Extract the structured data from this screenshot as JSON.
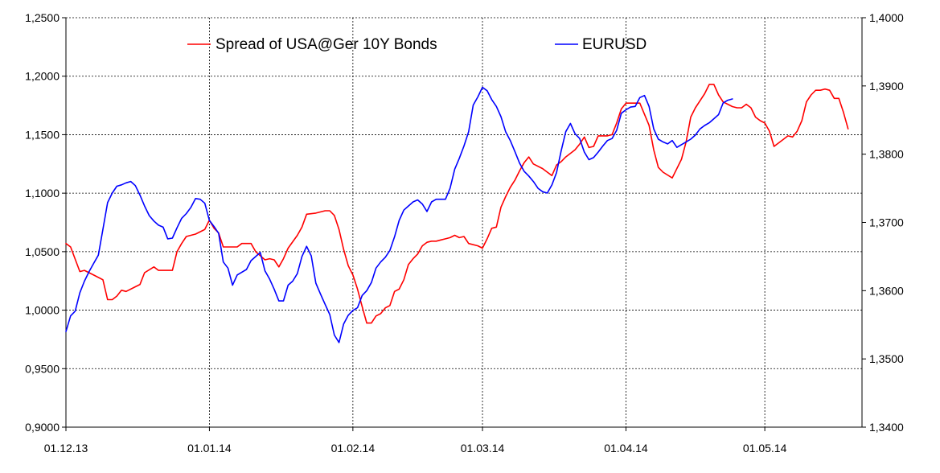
{
  "chart_data": {
    "type": "line",
    "title": "",
    "xlabel": "",
    "ylabel": "",
    "x_tick_labels": [
      "01.12.13",
      "01.01.14",
      "01.02.14",
      "01.03.14",
      "01.04.14",
      "01.05.14"
    ],
    "x_tick_days": [
      0,
      31,
      62,
      90,
      121,
      151
    ],
    "x_range_days": [
      0,
      172
    ],
    "y_left": {
      "ylim": [
        0.9,
        1.25
      ],
      "ticks": [
        0.9,
        0.95,
        1.0,
        1.05,
        1.1,
        1.15,
        1.2,
        1.25
      ],
      "tick_labels": [
        "0,9000",
        "0,9500",
        "1,0000",
        "1,0500",
        "1,1000",
        "1,1500",
        "1,2000",
        "1,2500"
      ]
    },
    "y_right": {
      "ylim": [
        1.34,
        1.4
      ],
      "ticks": [
        1.34,
        1.35,
        1.36,
        1.37,
        1.38,
        1.39,
        1.4
      ],
      "tick_labels": [
        "1,3400",
        "1,3500",
        "1,3600",
        "1,3700",
        "1,3800",
        "1,3900",
        "1,4000"
      ]
    },
    "grid": true,
    "legend_position": "top-center",
    "series": [
      {
        "name": "Spread of USA@Ger 10Y Bonds",
        "color": "#ff0000",
        "axis": "left",
        "points": [
          [
            0,
            1.057
          ],
          [
            1,
            1.054
          ],
          [
            3,
            1.033
          ],
          [
            4,
            1.034
          ],
          [
            6,
            1.03
          ],
          [
            8,
            1.026
          ],
          [
            9,
            1.009
          ],
          [
            10,
            1.009
          ],
          [
            11,
            1.012
          ],
          [
            12,
            1.017
          ],
          [
            13,
            1.016
          ],
          [
            15,
            1.02
          ],
          [
            16,
            1.022
          ],
          [
            17,
            1.032
          ],
          [
            19,
            1.037
          ],
          [
            20,
            1.034
          ],
          [
            21,
            1.034
          ],
          [
            22,
            1.034
          ],
          [
            23,
            1.034
          ],
          [
            24,
            1.05
          ],
          [
            25,
            1.057
          ],
          [
            26,
            1.063
          ],
          [
            27,
            1.064
          ],
          [
            28,
            1.065
          ],
          [
            30,
            1.069
          ],
          [
            31,
            1.077
          ],
          [
            32,
            1.07
          ],
          [
            33,
            1.066
          ],
          [
            34,
            1.054
          ],
          [
            35,
            1.054
          ],
          [
            37,
            1.054
          ],
          [
            38,
            1.057
          ],
          [
            40,
            1.057
          ],
          [
            41,
            1.05
          ],
          [
            43,
            1.043
          ],
          [
            44,
            1.044
          ],
          [
            45,
            1.043
          ],
          [
            46,
            1.037
          ],
          [
            47,
            1.044
          ],
          [
            48,
            1.053
          ],
          [
            50,
            1.064
          ],
          [
            51,
            1.071
          ],
          [
            52,
            1.082
          ],
          [
            54,
            1.083
          ],
          [
            56,
            1.085
          ],
          [
            57,
            1.085
          ],
          [
            58,
            1.081
          ],
          [
            59,
            1.069
          ],
          [
            60,
            1.052
          ],
          [
            61,
            1.038
          ],
          [
            62,
            1.03
          ],
          [
            63,
            1.018
          ],
          [
            64,
            1.003
          ],
          [
            65,
            0.989
          ],
          [
            66,
            0.989
          ],
          [
            67,
            0.995
          ],
          [
            68,
            0.997
          ],
          [
            69,
            1.002
          ],
          [
            70,
            1.004
          ],
          [
            71,
            1.016
          ],
          [
            72,
            1.018
          ],
          [
            73,
            1.026
          ],
          [
            74,
            1.039
          ],
          [
            75,
            1.044
          ],
          [
            76,
            1.048
          ],
          [
            77,
            1.055
          ],
          [
            78,
            1.058
          ],
          [
            79,
            1.059
          ],
          [
            80,
            1.059
          ],
          [
            81,
            1.06
          ],
          [
            82,
            1.061
          ],
          [
            83,
            1.062
          ],
          [
            84,
            1.064
          ],
          [
            85,
            1.062
          ],
          [
            86,
            1.063
          ],
          [
            87,
            1.057
          ],
          [
            89,
            1.055
          ],
          [
            90,
            1.053
          ],
          [
            91,
            1.061
          ],
          [
            92,
            1.07
          ],
          [
            93,
            1.071
          ],
          [
            94,
            1.088
          ],
          [
            95,
            1.097
          ],
          [
            96,
            1.105
          ],
          [
            97,
            1.111
          ],
          [
            98,
            1.119
          ],
          [
            99,
            1.126
          ],
          [
            100,
            1.131
          ],
          [
            101,
            1.125
          ],
          [
            103,
            1.121
          ],
          [
            104,
            1.118
          ],
          [
            105,
            1.115
          ],
          [
            106,
            1.124
          ],
          [
            107,
            1.127
          ],
          [
            108,
            1.131
          ],
          [
            110,
            1.137
          ],
          [
            111,
            1.142
          ],
          [
            112,
            1.148
          ],
          [
            113,
            1.139
          ],
          [
            114,
            1.14
          ],
          [
            115,
            1.149
          ],
          [
            117,
            1.149
          ],
          [
            118,
            1.15
          ],
          [
            119,
            1.16
          ],
          [
            120,
            1.172
          ],
          [
            121,
            1.177
          ],
          [
            123,
            1.177
          ],
          [
            124,
            1.177
          ],
          [
            126,
            1.158
          ],
          [
            127,
            1.137
          ],
          [
            128,
            1.122
          ],
          [
            129,
            1.118
          ],
          [
            131,
            1.113
          ],
          [
            133,
            1.129
          ],
          [
            134,
            1.144
          ],
          [
            135,
            1.165
          ],
          [
            136,
            1.173
          ],
          [
            138,
            1.185
          ],
          [
            139,
            1.193
          ],
          [
            140,
            1.193
          ],
          [
            141,
            1.184
          ],
          [
            142,
            1.178
          ],
          [
            143,
            1.176
          ],
          [
            144,
            1.174
          ],
          [
            145,
            1.173
          ],
          [
            146,
            1.173
          ],
          [
            147,
            1.176
          ],
          [
            148,
            1.173
          ],
          [
            149,
            1.165
          ],
          [
            150,
            1.162
          ],
          [
            151,
            1.16
          ],
          [
            152,
            1.153
          ],
          [
            153,
            1.14
          ],
          [
            154,
            1.143
          ],
          [
            155,
            1.146
          ],
          [
            156,
            1.149
          ],
          [
            157,
            1.148
          ],
          [
            158,
            1.153
          ],
          [
            159,
            1.162
          ],
          [
            160,
            1.178
          ],
          [
            161,
            1.184
          ],
          [
            162,
            1.188
          ],
          [
            163,
            1.188
          ],
          [
            164,
            1.189
          ],
          [
            165,
            1.188
          ],
          [
            166,
            1.181
          ],
          [
            167,
            1.181
          ],
          [
            168,
            1.169
          ],
          [
            169,
            1.155
          ]
        ]
      },
      {
        "name": "EURUSD",
        "color": "#0000ff",
        "axis": "right",
        "points": [
          [
            0,
            1.354
          ],
          [
            1,
            1.3563
          ],
          [
            2,
            1.357
          ],
          [
            3,
            1.3597
          ],
          [
            4,
            1.3614
          ],
          [
            5,
            1.3628
          ],
          [
            6,
            1.364
          ],
          [
            7,
            1.3652
          ],
          [
            8,
            1.369
          ],
          [
            9,
            1.3729
          ],
          [
            10,
            1.3743
          ],
          [
            11,
            1.3753
          ],
          [
            12,
            1.3755
          ],
          [
            13,
            1.3758
          ],
          [
            14,
            1.376
          ],
          [
            15,
            1.3754
          ],
          [
            16,
            1.374
          ],
          [
            17,
            1.3724
          ],
          [
            18,
            1.371
          ],
          [
            19,
            1.3702
          ],
          [
            20,
            1.3696
          ],
          [
            21,
            1.3693
          ],
          [
            22,
            1.3676
          ],
          [
            23,
            1.3677
          ],
          [
            24,
            1.3692
          ],
          [
            25,
            1.3706
          ],
          [
            26,
            1.3713
          ],
          [
            27,
            1.3722
          ],
          [
            28,
            1.3735
          ],
          [
            29,
            1.3734
          ],
          [
            30,
            1.3728
          ],
          [
            31,
            1.3703
          ],
          [
            32,
            1.3694
          ],
          [
            33,
            1.3684
          ],
          [
            34,
            1.3642
          ],
          [
            35,
            1.3633
          ],
          [
            36,
            1.3608
          ],
          [
            37,
            1.3623
          ],
          [
            38,
            1.3627
          ],
          [
            39,
            1.3631
          ],
          [
            40,
            1.3644
          ],
          [
            41,
            1.365
          ],
          [
            42,
            1.3656
          ],
          [
            43,
            1.3629
          ],
          [
            44,
            1.3617
          ],
          [
            45,
            1.3602
          ],
          [
            46,
            1.3585
          ],
          [
            47,
            1.3585
          ],
          [
            48,
            1.3608
          ],
          [
            49,
            1.3614
          ],
          [
            50,
            1.3625
          ],
          [
            51,
            1.365
          ],
          [
            52,
            1.3665
          ],
          [
            53,
            1.3651
          ],
          [
            54,
            1.3611
          ],
          [
            55,
            1.3595
          ],
          [
            56,
            1.358
          ],
          [
            57,
            1.3565
          ],
          [
            58,
            1.3535
          ],
          [
            59,
            1.3524
          ],
          [
            60,
            1.3551
          ],
          [
            61,
            1.3564
          ],
          [
            62,
            1.3571
          ],
          [
            63,
            1.3575
          ],
          [
            64,
            1.3593
          ],
          [
            65,
            1.36
          ],
          [
            66,
            1.3612
          ],
          [
            67,
            1.3633
          ],
          [
            68,
            1.3642
          ],
          [
            69,
            1.3649
          ],
          [
            70,
            1.3659
          ],
          [
            71,
            1.3679
          ],
          [
            72,
            1.3703
          ],
          [
            73,
            1.3718
          ],
          [
            74,
            1.3724
          ],
          [
            75,
            1.373
          ],
          [
            76,
            1.3733
          ],
          [
            77,
            1.3727
          ],
          [
            78,
            1.3716
          ],
          [
            79,
            1.373
          ],
          [
            80,
            1.3734
          ],
          [
            81,
            1.3734
          ],
          [
            82,
            1.3734
          ],
          [
            83,
            1.375
          ],
          [
            84,
            1.3778
          ],
          [
            85,
            1.3794
          ],
          [
            86,
            1.3812
          ],
          [
            87,
            1.3833
          ],
          [
            88,
            1.3872
          ],
          [
            89,
            1.3884
          ],
          [
            90,
            1.3898
          ],
          [
            91,
            1.3893
          ],
          [
            92,
            1.388
          ],
          [
            93,
            1.387
          ],
          [
            94,
            1.3855
          ],
          [
            95,
            1.3833
          ],
          [
            96,
            1.382
          ],
          [
            97,
            1.3804
          ],
          [
            98,
            1.3787
          ],
          [
            99,
            1.3775
          ],
          [
            100,
            1.3768
          ],
          [
            101,
            1.376
          ],
          [
            102,
            1.375
          ],
          [
            103,
            1.3745
          ],
          [
            104,
            1.3743
          ],
          [
            105,
            1.3755
          ],
          [
            106,
            1.3773
          ],
          [
            107,
            1.3805
          ],
          [
            108,
            1.3833
          ],
          [
            109,
            1.3845
          ],
          [
            110,
            1.383
          ],
          [
            111,
            1.3823
          ],
          [
            112,
            1.3803
          ],
          [
            113,
            1.3792
          ],
          [
            114,
            1.3795
          ],
          [
            115,
            1.3803
          ],
          [
            116,
            1.3812
          ],
          [
            117,
            1.382
          ],
          [
            118,
            1.3823
          ],
          [
            119,
            1.3835
          ],
          [
            120,
            1.386
          ],
          [
            121,
            1.3865
          ],
          [
            122,
            1.3869
          ],
          [
            123,
            1.387
          ],
          [
            124,
            1.3883
          ],
          [
            125,
            1.3886
          ],
          [
            126,
            1.387
          ],
          [
            127,
            1.3837
          ],
          [
            128,
            1.3822
          ],
          [
            129,
            1.3818
          ],
          [
            130,
            1.3815
          ],
          [
            131,
            1.382
          ],
          [
            132,
            1.381
          ],
          [
            133,
            1.3814
          ],
          [
            134,
            1.3818
          ],
          [
            135,
            1.3822
          ],
          [
            136,
            1.3828
          ],
          [
            137,
            1.3837
          ],
          [
            138,
            1.3842
          ],
          [
            139,
            1.3846
          ],
          [
            140,
            1.3852
          ],
          [
            141,
            1.3858
          ],
          [
            142,
            1.3875
          ],
          [
            143,
            1.3879
          ],
          [
            144,
            1.3881
          ]
        ]
      }
    ]
  }
}
